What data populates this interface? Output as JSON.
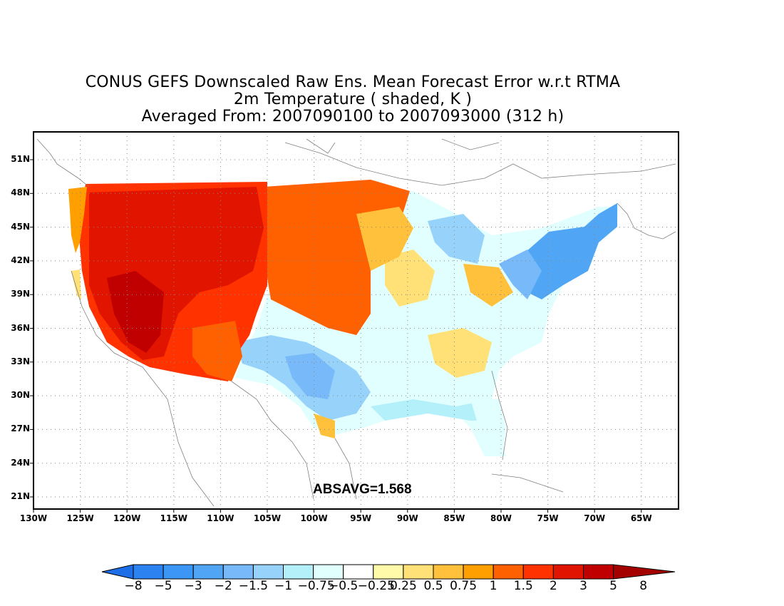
{
  "title": {
    "line1": "CONUS GEFS Downscaled Raw Ens. Mean Forecast Error w.r.t RTMA",
    "line2": "2m Temperature ( shaded, K )",
    "line3": "Averaged From: 2007090100 to 2007093000 (312 h)"
  },
  "annotation": "ABSAVG=1.568",
  "axes": {
    "lat_labels": [
      "51N",
      "48N",
      "45N",
      "42N",
      "39N",
      "36N",
      "33N",
      "30N",
      "27N",
      "24N",
      "21N"
    ],
    "lon_labels": [
      "130W",
      "125W",
      "120W",
      "115W",
      "110W",
      "105W",
      "100W",
      "95W",
      "90W",
      "85W",
      "80W",
      "75W",
      "70W",
      "65W"
    ],
    "grid": "dotted"
  },
  "colorbar": {
    "labels": [
      "-8",
      "-5",
      "-3",
      "-2",
      "-1.5",
      "-1",
      "-0.75",
      "-0.5",
      "-0.25",
      "0.25",
      "0.5",
      "0.75",
      "1",
      "1.5",
      "2",
      "3",
      "5",
      "8"
    ],
    "colors": [
      "#1e6ee8",
      "#2b82f0",
      "#3c96f5",
      "#50a5f5",
      "#78b9fa",
      "#96d2fa",
      "#b4f0fa",
      "#e1ffff",
      "#ffffff",
      "#fffaaa",
      "#ffe178",
      "#ffc03c",
      "#ffa000",
      "#ff6000",
      "#ff3200",
      "#e11400",
      "#c00000",
      "#a50000"
    ]
  },
  "legend_colors": {
    "strong_warm": "#c00000",
    "warm": "#ff3200",
    "mild_warm": "#ffc03c",
    "neutral": "#ffffff",
    "mild_cold": "#b4f0fa",
    "cold": "#50a5f5"
  }
}
